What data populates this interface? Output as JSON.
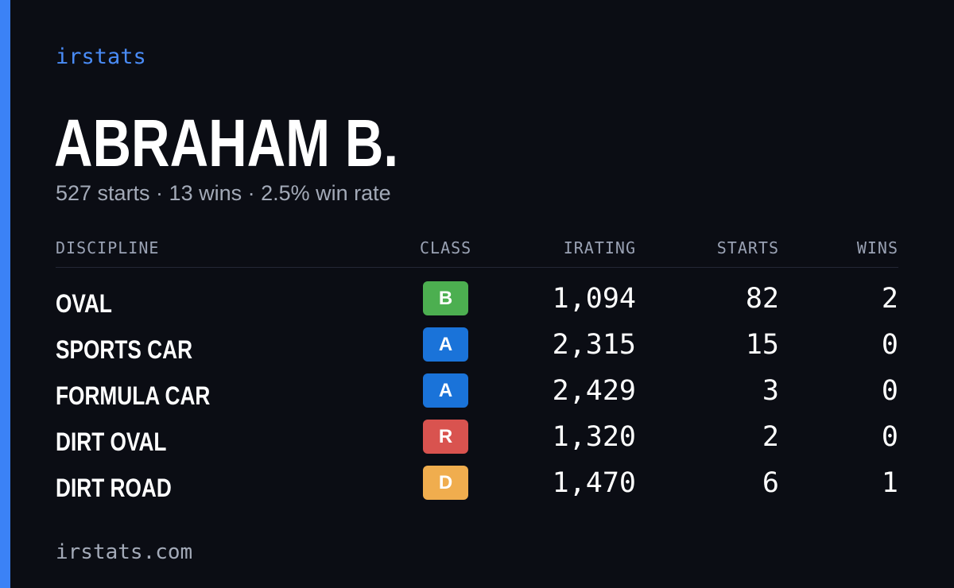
{
  "brand": "irstats",
  "driver": {
    "name": "ABRAHAM B.",
    "summary": "527 starts · 13 wins · 2.5% win rate"
  },
  "table": {
    "headers": {
      "discipline": "DISCIPLINE",
      "class": "CLASS",
      "irating": "IRATING",
      "starts": "STARTS",
      "wins": "WINS"
    },
    "rows": [
      {
        "discipline": "OVAL",
        "class": "B",
        "class_color": "#4caf50",
        "irating": "1,094",
        "starts": "82",
        "wins": "2"
      },
      {
        "discipline": "SPORTS CAR",
        "class": "A",
        "class_color": "#1a73d9",
        "irating": "2,315",
        "starts": "15",
        "wins": "0"
      },
      {
        "discipline": "FORMULA CAR",
        "class": "A",
        "class_color": "#1a73d9",
        "irating": "2,429",
        "starts": "3",
        "wins": "0"
      },
      {
        "discipline": "DIRT OVAL",
        "class": "R",
        "class_color": "#d9534f",
        "irating": "1,320",
        "starts": "2",
        "wins": "0"
      },
      {
        "discipline": "DIRT ROAD",
        "class": "D",
        "class_color": "#f0ad4e",
        "irating": "1,470",
        "starts": "6",
        "wins": "1"
      }
    ]
  },
  "footer": "irstats.com",
  "colors": {
    "accent": "#3b82f6",
    "background": "#0b0d14"
  }
}
